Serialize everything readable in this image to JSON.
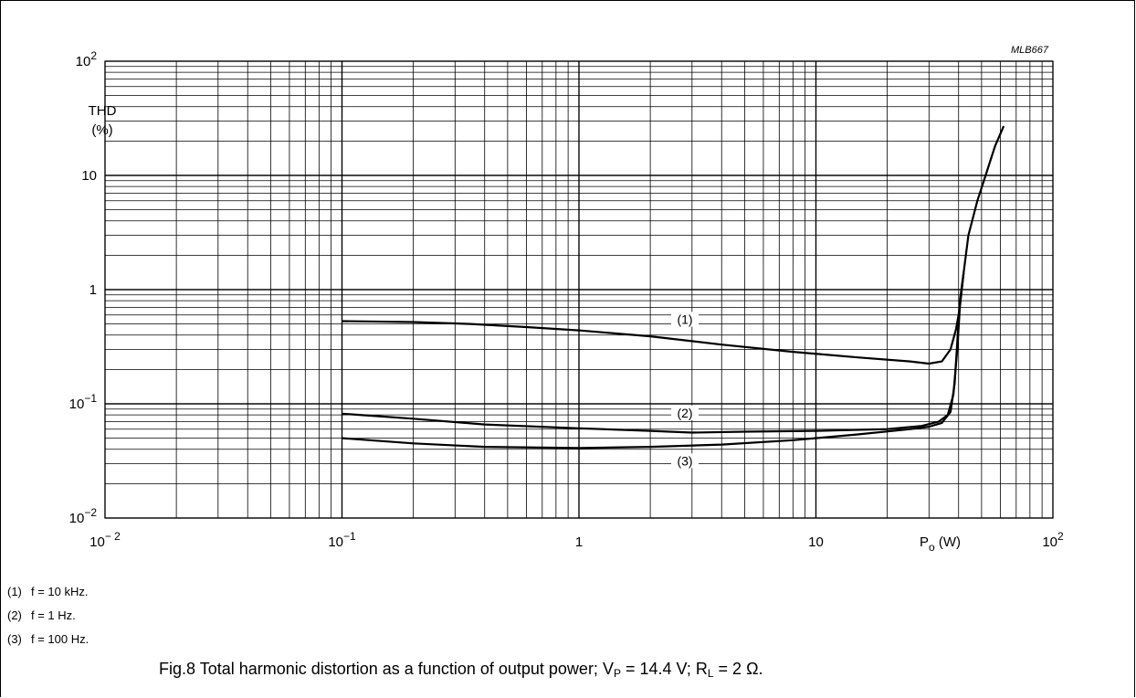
{
  "chart_data": {
    "type": "line",
    "code": "MLB667",
    "x_scale": "log",
    "y_scale": "log",
    "xlim": [
      0.01,
      100
    ],
    "ylim": [
      0.01,
      100
    ],
    "grid": true,
    "ylabel_line1": "THD",
    "ylabel_line2": "(%)",
    "xlabel_main": "P",
    "xlabel_sub": "o",
    "xlabel_unit": " (W)",
    "x_ticks": [
      {
        "value": 0.01,
        "base": "10",
        "exp": "− 2"
      },
      {
        "value": 0.1,
        "base": "10",
        "exp": "−1"
      },
      {
        "value": 1,
        "base": "1",
        "exp": ""
      },
      {
        "value": 10,
        "base": "10",
        "exp": ""
      },
      {
        "value": 100,
        "base": "10",
        "exp": "2"
      }
    ],
    "y_ticks": [
      {
        "value": 100,
        "base": "10",
        "exp": "2"
      },
      {
        "value": 10,
        "base": "10",
        "exp": ""
      },
      {
        "value": 1,
        "base": "1",
        "exp": ""
      },
      {
        "value": 0.1,
        "base": "10",
        "exp": "−1"
      },
      {
        "value": 0.01,
        "base": "10",
        "exp": "−2"
      }
    ],
    "series": [
      {
        "name": "(1)",
        "label_at": [
          2.8,
          0.52
        ],
        "points": [
          [
            0.1,
            0.53
          ],
          [
            0.2,
            0.52
          ],
          [
            0.35,
            0.5
          ],
          [
            0.6,
            0.47
          ],
          [
            1,
            0.44
          ],
          [
            2,
            0.39
          ],
          [
            4,
            0.33
          ],
          [
            8,
            0.285
          ],
          [
            15,
            0.255
          ],
          [
            25,
            0.235
          ],
          [
            30,
            0.225
          ],
          [
            34,
            0.235
          ],
          [
            37,
            0.3
          ],
          [
            39,
            0.45
          ],
          [
            40,
            0.6
          ],
          [
            41,
            0.9
          ],
          [
            42,
            1.4
          ],
          [
            44,
            3
          ],
          [
            48,
            6
          ],
          [
            52,
            10
          ],
          [
            57,
            18
          ],
          [
            62,
            27
          ]
        ]
      },
      {
        "name": "(2)",
        "label_at": [
          2.8,
          0.079
        ],
        "points": [
          [
            0.1,
            0.082
          ],
          [
            0.2,
            0.074
          ],
          [
            0.4,
            0.066
          ],
          [
            1,
            0.061
          ],
          [
            2,
            0.058
          ],
          [
            3,
            0.056
          ],
          [
            5,
            0.057
          ],
          [
            10,
            0.058
          ],
          [
            20,
            0.06
          ],
          [
            28,
            0.064
          ],
          [
            33,
            0.07
          ],
          [
            36,
            0.08
          ],
          [
            38,
            0.12
          ],
          [
            39.5,
            0.3
          ],
          [
            40.5,
            0.7
          ],
          [
            42,
            1.4
          ]
        ]
      },
      {
        "name": "(3)",
        "label_at": [
          2.8,
          0.03
        ],
        "points": [
          [
            0.1,
            0.05
          ],
          [
            0.2,
            0.045
          ],
          [
            0.4,
            0.042
          ],
          [
            1,
            0.041
          ],
          [
            2,
            0.042
          ],
          [
            4,
            0.044
          ],
          [
            8,
            0.048
          ],
          [
            15,
            0.054
          ],
          [
            25,
            0.06
          ],
          [
            30,
            0.063
          ],
          [
            34,
            0.068
          ],
          [
            37,
            0.085
          ],
          [
            38.5,
            0.15
          ],
          [
            39.5,
            0.35
          ],
          [
            40.5,
            0.8
          ],
          [
            42,
            1.4
          ]
        ]
      }
    ]
  },
  "legend": [
    {
      "num": "(1)",
      "text": "f = 10  kHz."
    },
    {
      "num": "(2)",
      "text": "f = 1 Hz."
    },
    {
      "num": "(3)",
      "text": "f = 100 Hz."
    }
  ],
  "caption": {
    "prefix": "Fig.8  Total harmonic distortion as a function of output power; V",
    "vp_sub": "P",
    "middle": " = 14.4 V; R",
    "rl_sub": "L",
    "suffix": " = 2 Ω."
  }
}
